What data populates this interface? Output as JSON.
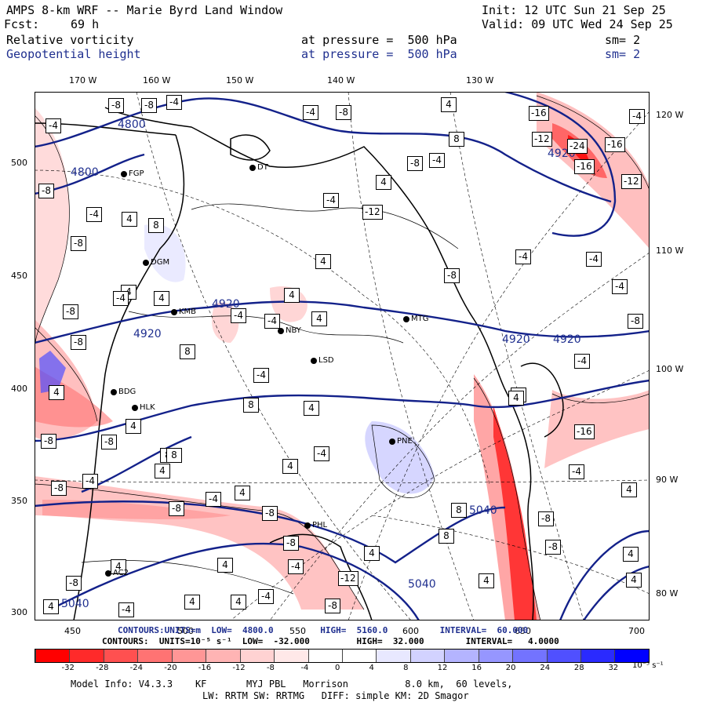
{
  "header": {
    "title": "AMPS 8-km WRF -- Marie Byrd Land Window",
    "init": "Init: 12 UTC Sun 21 Sep 25",
    "fcst_label": "Fcst:",
    "fcst_value": "69 h",
    "valid": "Valid: 09 UTC Wed 24 Sep 25",
    "field1_name": "Relative vorticity",
    "field1_level": "at pressure =  500 hPa",
    "field1_sm": "sm= 2",
    "field2_name": "Geopotential height",
    "field2_level": "at pressure =  500 hPa",
    "field2_sm": "sm= 2"
  },
  "axes": {
    "top_lon": [
      "170 W",
      "160 W",
      "150 W",
      "140 W",
      "130 W"
    ],
    "right_lon": [
      "120 W",
      "110 W",
      "100 W",
      "90 W",
      "80 W"
    ],
    "left_y": [
      "500",
      "450",
      "400",
      "350",
      "300"
    ],
    "bottom_x": [
      "450",
      "500",
      "550",
      "600",
      "650",
      "700"
    ]
  },
  "stations": [
    "FGP",
    "DT",
    "DGM",
    "KMB",
    "NBY",
    "MTG",
    "LSD",
    "BDG",
    "HLK",
    "PNE",
    "PHL",
    "AC2"
  ],
  "contour_labels": {
    "height": [
      "4800",
      "4800",
      "4920",
      "4920",
      "4920",
      "4920",
      "4920",
      "5040",
      "5040",
      "5040"
    ],
    "vorticity_boxes": [
      "-4",
      "-8",
      "4",
      "8",
      "-12",
      "-16",
      "-24"
    ]
  },
  "footer": {
    "contours1": "CONTOURS:UNITS=m  LOW=  4800.0         HIGH=  5160.0          INTERVAL=  60.000",
    "contours2": "CONTOURS:  UNITS=10⁻⁵ s⁻¹  LOW=  -32.000         HIGH=  32.000        INTERVAL=   4.0000",
    "colorbar_labels": [
      "-32",
      "-28",
      "-24",
      "-20",
      "-16",
      "-12",
      "-8",
      "-4",
      "0",
      "4",
      "8",
      "12",
      "16",
      "20",
      "24",
      "28",
      "32"
    ],
    "colorbar_units": "10⁻⁵ s⁻¹",
    "model_info": "Model Info: V4.3.3    KF       MYJ PBL   Morrison          8.0 km,  60 levels,",
    "physics": "LW: RRTM SW: RRTMG   DIFF: simple KM: 2D Smagor"
  },
  "colors": {
    "colorbar": [
      "#ff0000",
      "#ff2a2a",
      "#ff5050",
      "#ff7373",
      "#ff9696",
      "#ffb4b4",
      "#ffd2d2",
      "#ffe8e8",
      "#ffffff",
      "#ffffff",
      "#e8e8ff",
      "#d2d2ff",
      "#b4b4ff",
      "#9696ff",
      "#7373ff",
      "#5050ff",
      "#2a2aff",
      "#0000ff"
    ],
    "height_contour": "#13218a",
    "header_blue": "#1f2f8f"
  }
}
